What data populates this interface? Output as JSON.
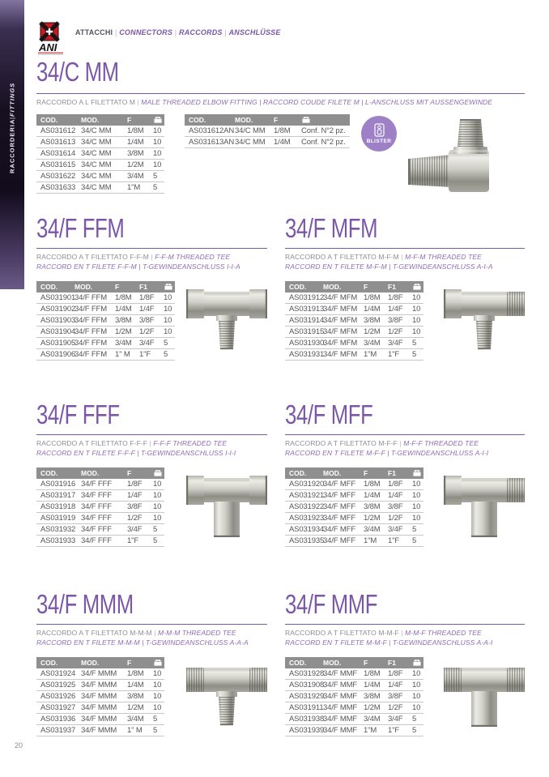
{
  "page": {
    "number": "20",
    "sep": " | "
  },
  "sidebar": {
    "bold": "RACCORDERIA",
    "italic": "FITTINGS"
  },
  "header": {
    "logo_text": "ANI",
    "tags": [
      "ATTACCHI",
      "CONNECTORS",
      "RACCORDS",
      "ANSCHLÜSSE"
    ]
  },
  "colors": {
    "purple": "#7b57a7",
    "desc_purple": "#8f6cb5",
    "text_gray": "#8f8c96",
    "header_bg": "#8f8f8f",
    "row_text": "#56565b",
    "badge": "#9d80c6"
  },
  "sections": [
    {
      "id": "34c-mm",
      "title": "34/C MM",
      "desc1": {
        "plain": "RACCORDO A L FILETTATO M",
        "italic": "MALE THREADED ELBOW FITTING | RACCORD COUDE FILETE M | L-ANSCHLUSS MIT AUSSENGEWINDE"
      },
      "badge": "BLISTER",
      "product": {
        "type": "elbow"
      },
      "tables": [
        {
          "headers": [
            "COD.",
            "MOD.",
            "F"
          ],
          "pack_icon": "package-icon",
          "rows": [
            [
              "AS031612",
              "34/C MM",
              "1/8M",
              "10"
            ],
            [
              "AS031613",
              "34/C MM",
              "1/4M",
              "10"
            ],
            [
              "AS031614",
              "34/C MM",
              "3/8M",
              "10"
            ],
            [
              "AS031615",
              "34/C MM",
              "1/2M",
              "10"
            ],
            [
              "AS031622",
              "34/C MM",
              "3/4M",
              "5"
            ],
            [
              "AS031633",
              "34/C MM",
              "1\"M",
              "5"
            ]
          ]
        },
        {
          "headers": [
            "COD.",
            "MOD.",
            "F"
          ],
          "pack_icon": "package-icon",
          "rows": [
            [
              "AS031612AN",
              "34/C MM",
              "1/8M",
              "Conf. N°2 pz."
            ],
            [
              "AS031613AN",
              "34/C MM",
              "1/4M",
              "Conf. N°2 pz."
            ]
          ]
        }
      ]
    },
    {
      "id": "34f-ffm",
      "title": "34/F FFM",
      "desc1": {
        "plain": "RACCORDO A T FILETTATO F-F-M",
        "italic": "F-F-M THREADED TEE"
      },
      "desc2": "RACCORD EN T FILETE F-F-M | T-GEWINDEANSCHLUSS I-I-A",
      "product": {
        "type": "tee",
        "left": "F",
        "right": "F",
        "bottom": "M"
      },
      "table": {
        "headers": [
          "COD.",
          "MOD.",
          "F",
          "F1"
        ],
        "pack_icon": "package-icon",
        "rows": [
          [
            "AS031901",
            "34/F FFM",
            "1/8M",
            "1/8F",
            "10"
          ],
          [
            "AS031902",
            "34/F FFM",
            "1/4M",
            "1/4F",
            "10"
          ],
          [
            "AS031903",
            "34/F FFM",
            "3/8M",
            "3/8F",
            "10"
          ],
          [
            "AS031904",
            "34/F FFM",
            "1/2M",
            "1/2F",
            "10"
          ],
          [
            "AS031905",
            "34/F FFM",
            "3/4M",
            "3/4F",
            "5"
          ],
          [
            "AS031906",
            "34/F FFM",
            "1\" M",
            "1\"F",
            "5"
          ]
        ]
      }
    },
    {
      "id": "34f-mfm",
      "title": "34/F MFM",
      "desc1": {
        "plain": "RACCORDO A T FILETTATO M-F-M",
        "italic": "M-F-M THREADED TEE"
      },
      "desc2": "RACCORD EN T FILETE M-F-M | T-GEWINDEANSCHLUSS A-I-A",
      "product": {
        "type": "tee",
        "left": "F",
        "right": "M",
        "bottom": "M"
      },
      "table": {
        "headers": [
          "COD.",
          "MOD.",
          "F",
          "F1"
        ],
        "pack_icon": "package-icon",
        "rows": [
          [
            "AS031912",
            "34/F MFM",
            "1/8M",
            "1/8F",
            "10"
          ],
          [
            "AS031913",
            "34/F MFM",
            "1/4M",
            "1/4F",
            "10"
          ],
          [
            "AS031914",
            "34/F MFM",
            "3/8M",
            "3/8F",
            "10"
          ],
          [
            "AS031915",
            "34/F MFM",
            "1/2M",
            "1/2F",
            "10"
          ],
          [
            "AS031930",
            "34/F MFM",
            "3/4M",
            "3/4F",
            "5"
          ],
          [
            "AS031931",
            "34/F MFM",
            "1\"M",
            "1\"F",
            "5"
          ]
        ]
      }
    },
    {
      "id": "34f-fff",
      "title": "34/F FFF",
      "desc1": {
        "plain": "RACCORDO A T FILETTATO F-F-F",
        "italic": "F-F-F THREADED TEE"
      },
      "desc2": "RACCORD EN T FILETE F-F-F | T-GEWINDEANSCHLUSS I-I-I",
      "product": {
        "type": "tee",
        "left": "F",
        "right": "F",
        "bottom": "F"
      },
      "table": {
        "headers": [
          "COD.",
          "MOD.",
          "F"
        ],
        "pack_icon": "package-icon",
        "rows": [
          [
            "AS031916",
            "34/F FFF",
            "1/8F",
            "10"
          ],
          [
            "AS031917",
            "34/F FFF",
            "1/4F",
            "10"
          ],
          [
            "AS031918",
            "34/F FFF",
            "3/8F",
            "10"
          ],
          [
            "AS031919",
            "34/F FFF",
            "1/2F",
            "10"
          ],
          [
            "AS031932",
            "34/F FFF",
            "3/4F",
            "5"
          ],
          [
            "AS031933",
            "34/F FFF",
            "1\"F",
            "5"
          ]
        ]
      }
    },
    {
      "id": "34f-mff",
      "title": "34/F MFF",
      "desc1": {
        "plain": "RACCORDO A T FILETTATO M-F-F",
        "italic": "M-F-F THREADED TEE"
      },
      "desc2": "RACCORD EN T FILETE M-F-F | T-GEWINDEANSCHLUSS A-I-I",
      "product": {
        "type": "tee",
        "left": "F",
        "right": "M",
        "bottom": "F"
      },
      "table": {
        "headers": [
          "COD.",
          "MOD.",
          "F",
          "F1"
        ],
        "pack_icon": "package-icon",
        "rows": [
          [
            "AS031920",
            "34/F MFF",
            "1/8M",
            "1/8F",
            "10"
          ],
          [
            "AS031921",
            "34/F MFF",
            "1/4M",
            "1/4F",
            "10"
          ],
          [
            "AS031922",
            "34/F MFF",
            "3/8M",
            "3/8F",
            "10"
          ],
          [
            "AS031923",
            "34/F MFF",
            "1/2M",
            "1/2F",
            "10"
          ],
          [
            "AS031934",
            "34/F MFF",
            "3/4M",
            "3/4F",
            "5"
          ],
          [
            "AS031935",
            "34/F MFF",
            "1\"M",
            "1\"F",
            "5"
          ]
        ]
      }
    },
    {
      "id": "34f-mmm",
      "title": "34/F MMM",
      "desc1": {
        "plain": "RACCORDO A T FILETTATO M-M-M",
        "italic": "M-M-M THREADED TEE"
      },
      "desc2": "RACCORD EN T FILETE M-M-M | T-GEWINDEANSCHLUSS A-A-A",
      "product": {
        "type": "tee",
        "left": "M",
        "right": "M",
        "bottom": "M"
      },
      "table": {
        "headers": [
          "COD.",
          "MOD.",
          "F"
        ],
        "pack_icon": "package-icon",
        "rows": [
          [
            "AS031924",
            "34/F MMM",
            "1/8M",
            "10"
          ],
          [
            "AS031925",
            "34/F MMM",
            "1/4M",
            "10"
          ],
          [
            "AS031926",
            "34/F MMM",
            "3/8M",
            "10"
          ],
          [
            "AS031927",
            "34/F MMM",
            "1/2M",
            "10"
          ],
          [
            "AS031936",
            "34/F MMM",
            "3/4M",
            "5"
          ],
          [
            "AS031937",
            "34/F MMM",
            "1\" M",
            "5"
          ]
        ]
      }
    },
    {
      "id": "34f-mmf",
      "title": "34/F MMF",
      "desc1": {
        "plain": "RACCORDO A T FILETTATO M-M-F",
        "italic": "M-M-F THREADED TEE"
      },
      "desc2": "RACCORD EN T FILETE M-M-F | T-GEWINDEANSCHLUSS A-A-I",
      "product": {
        "type": "tee",
        "left": "M",
        "right": "M",
        "bottom": "F"
      },
      "table": {
        "headers": [
          "COD.",
          "MOD.",
          "F",
          "F1"
        ],
        "pack_icon": "package-icon",
        "rows": [
          [
            "AS031928",
            "34/F MMF",
            "1/8M",
            "1/8F",
            "10"
          ],
          [
            "AS031908",
            "34/F MMF",
            "1/4M",
            "1/4F",
            "10"
          ],
          [
            "AS031929",
            "34/F MMF",
            "3/8M",
            "3/8F",
            "10"
          ],
          [
            "AS031911",
            "34/F MMF",
            "1/2M",
            "1/2F",
            "10"
          ],
          [
            "AS031938",
            "34/F MMF",
            "3/4M",
            "3/4F",
            "5"
          ],
          [
            "AS031939",
            "34/F MMF",
            "1\"M",
            "1\"F",
            "5"
          ]
        ]
      }
    }
  ]
}
